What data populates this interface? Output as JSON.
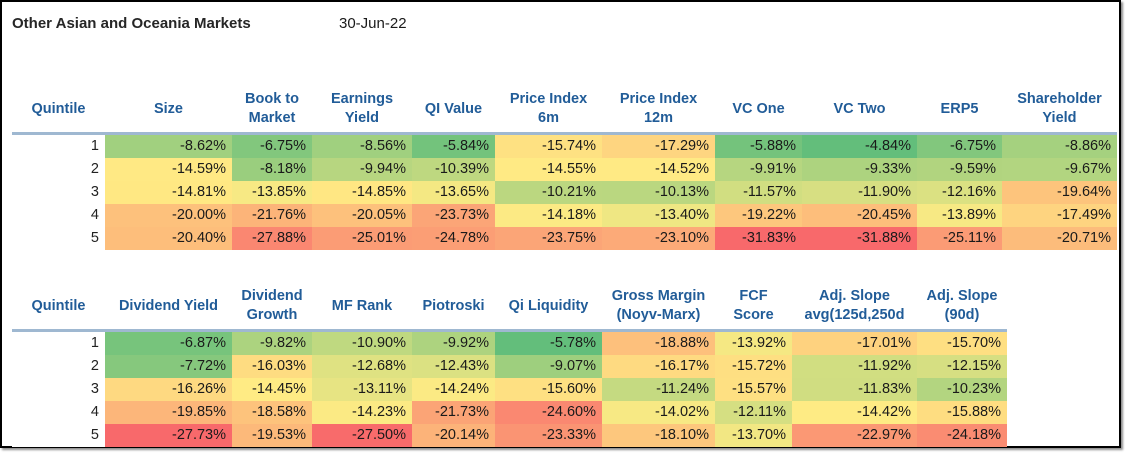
{
  "report": {
    "title": "Other Asian and Oceania Markets",
    "date": "30-Jun-22"
  },
  "heatmap_colors": {
    "low": "#F8696B",
    "mid": "#FFEB84",
    "high": "#63BE7B"
  },
  "tables": [
    {
      "id": "quintile-table-1",
      "quintile_label": "Quintile",
      "columns": [
        "Size",
        "Book to\nMarket",
        "Earnings\nYield",
        "QI Value",
        "Price Index\n6m",
        "Price Index\n12m",
        "VC One",
        "VC Two",
        "ERP5",
        "Shareholder\nYield"
      ],
      "rows": [
        {
          "quintile": "1",
          "values": [
            "-8.62%",
            "-6.75%",
            "-8.56%",
            "-5.84%",
            "-15.74%",
            "-17.29%",
            "-5.88%",
            "-4.84%",
            "-6.75%",
            "-8.86%"
          ]
        },
        {
          "quintile": "2",
          "values": [
            "-14.59%",
            "-8.18%",
            "-9.94%",
            "-10.39%",
            "-14.55%",
            "-14.52%",
            "-9.91%",
            "-9.33%",
            "-9.59%",
            "-9.67%"
          ]
        },
        {
          "quintile": "3",
          "values": [
            "-14.81%",
            "-13.85%",
            "-14.85%",
            "-13.65%",
            "-10.21%",
            "-10.13%",
            "-11.57%",
            "-11.90%",
            "-12.16%",
            "-19.64%"
          ]
        },
        {
          "quintile": "4",
          "values": [
            "-20.00%",
            "-21.76%",
            "-20.05%",
            "-23.73%",
            "-14.18%",
            "-13.40%",
            "-19.22%",
            "-20.45%",
            "-13.89%",
            "-17.49%"
          ]
        },
        {
          "quintile": "5",
          "values": [
            "-20.40%",
            "-27.88%",
            "-25.01%",
            "-24.78%",
            "-23.75%",
            "-23.10%",
            "-31.83%",
            "-31.88%",
            "-25.11%",
            "-20.71%"
          ]
        }
      ]
    },
    {
      "id": "quintile-table-2",
      "quintile_label": "Quintile",
      "columns": [
        "Dividend Yield",
        "Dividend\nGrowth",
        "MF Rank",
        "Piotroski",
        "Qi Liquidity",
        "Gross Margin\n(Noyv-Marx)",
        "FCF\nScore",
        "Adj. Slope\navg(125d,250d",
        "Adj. Slope\n(90d)"
      ],
      "rows": [
        {
          "quintile": "1",
          "values": [
            "-6.87%",
            "-9.82%",
            "-10.90%",
            "-9.92%",
            "-5.78%",
            "-18.88%",
            "-13.92%",
            "-17.01%",
            "-15.70%"
          ]
        },
        {
          "quintile": "2",
          "values": [
            "-7.72%",
            "-16.03%",
            "-12.68%",
            "-12.43%",
            "-9.07%",
            "-16.17%",
            "-15.72%",
            "-11.92%",
            "-12.15%"
          ]
        },
        {
          "quintile": "3",
          "values": [
            "-16.26%",
            "-14.45%",
            "-13.11%",
            "-14.24%",
            "-15.60%",
            "-11.24%",
            "-15.57%",
            "-11.83%",
            "-10.23%"
          ]
        },
        {
          "quintile": "4",
          "values": [
            "-19.85%",
            "-18.58%",
            "-14.23%",
            "-21.73%",
            "-24.60%",
            "-14.02%",
            "-12.11%",
            "-14.42%",
            "-15.88%"
          ]
        },
        {
          "quintile": "5",
          "values": [
            "-27.73%",
            "-19.53%",
            "-27.50%",
            "-20.14%",
            "-23.33%",
            "-18.10%",
            "-13.70%",
            "-22.97%",
            "-24.18%"
          ]
        }
      ]
    }
  ]
}
